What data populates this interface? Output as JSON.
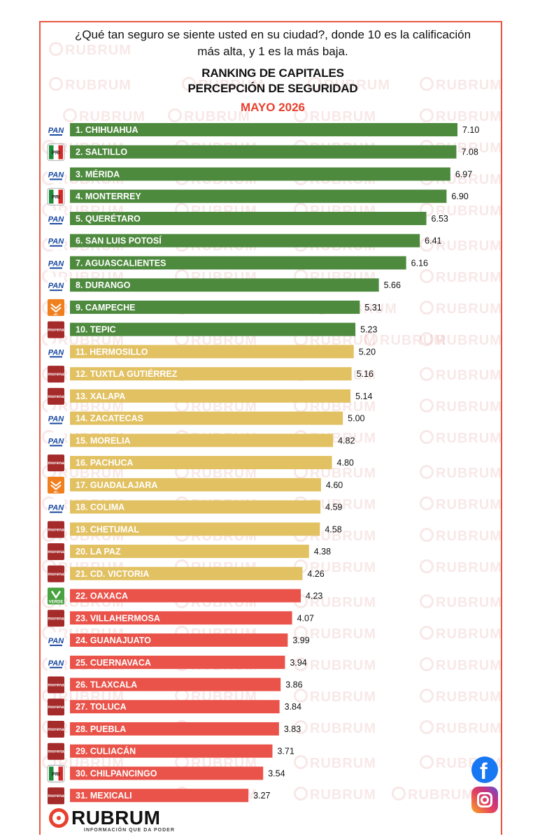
{
  "header": {
    "question": "¿Qué tan seguro se siente usted en su ciudad?, donde 10 es la calificación más alta, y  1 es la más baja."
  },
  "chart_data": {
    "type": "bar",
    "orientation": "horizontal",
    "title": "RANKING DE CAPITALES",
    "subtitle_line2": "PERCEPCIÓN DE SEGURIDAD",
    "period": "MAYO 2026",
    "xlim": [
      0,
      7.1
    ],
    "categories": [
      "1. CHIHUAHUA",
      "2. SALTILLO",
      "3. MÉRIDA",
      "4. MONTERREY",
      "5. QUERÉTARO",
      "6. SAN LUIS POTOSÍ",
      "7. AGUASCALIENTES",
      "8. DURANGO",
      "9. CAMPECHE",
      "10. TEPIC",
      "11. HERMOSILLO",
      "12. TUXTLA GUTIÉRREZ",
      "13. XALAPA",
      "14. ZACATECAS",
      "15. MORELIA",
      "16. PACHUCA",
      "17. GUADALAJARA",
      "18. COLIMA",
      "19. CHETUMAL",
      "20. LA PAZ",
      "21. CD. VICTORIA",
      "22. OAXACA",
      "23. VILLAHERMOSA",
      "24. GUANAJUATO",
      "25. CUERNAVACA",
      "26. TLAXCALA",
      "27. TOLUCA",
      "28. PUEBLA",
      "29. CULIACÁN",
      "30. CHILPANCINGO",
      "31. MEXICALI"
    ],
    "value_labels": [
      "7.10",
      "7.08",
      "6.97",
      "6.90",
      "6.53",
      "6.41",
      "6.16",
      "5.66",
      "5.31",
      "5.23",
      "5.20",
      "5.16",
      "5.14",
      "5.00",
      "4.82",
      "4.80",
      "4.60",
      "4.59",
      "4.58",
      "4.38",
      "4.26",
      "4.23",
      "4.07",
      "3.99",
      "3.94",
      "3.86",
      "3.84",
      "3.83",
      "3.71",
      "3.54",
      "3.27"
    ],
    "values": [
      7.1,
      7.08,
      6.97,
      6.9,
      6.53,
      6.41,
      6.16,
      5.66,
      5.31,
      5.23,
      5.2,
      5.16,
      5.14,
      5.0,
      4.82,
      4.8,
      4.6,
      4.59,
      4.58,
      4.38,
      4.26,
      4.23,
      4.07,
      3.99,
      3.94,
      3.86,
      3.84,
      3.83,
      3.71,
      3.54,
      3.27
    ],
    "parties": [
      "PAN",
      "PRI",
      "PAN",
      "PRI",
      "PAN",
      "PAN",
      "PAN",
      "PAN",
      "MC",
      "morena",
      "PAN",
      "morena",
      "morena",
      "PAN",
      "PAN",
      "morena",
      "MC",
      "PAN",
      "morena",
      "morena",
      "morena",
      "VERDE",
      "morena",
      "PAN",
      "PAN",
      "morena",
      "morena",
      "morena",
      "morena",
      "PRI",
      "morena"
    ],
    "bar_colors": {
      "green": "#4e8a3e",
      "yellow": "#e2c162",
      "red": "#e9534a"
    },
    "color_groups": [
      "green",
      "green",
      "green",
      "green",
      "green",
      "green",
      "green",
      "green",
      "green",
      "green",
      "yellow",
      "yellow",
      "yellow",
      "yellow",
      "yellow",
      "yellow",
      "yellow",
      "yellow",
      "yellow",
      "yellow",
      "yellow",
      "red",
      "red",
      "red",
      "red",
      "red",
      "red",
      "red",
      "red",
      "red",
      "red"
    ],
    "party_logo_text": {
      "PAN": "PAN",
      "PRI": "PRI",
      "morena": "morena",
      "MC": "MC",
      "VERDE": "VERDE"
    }
  },
  "watermark": {
    "text": "RUBRUM"
  },
  "footer": {
    "brand": "RUBRUM",
    "tagline": "INFORMACIÓN QUE DA PODER"
  },
  "social": {
    "facebook_icon": "facebook-icon",
    "instagram_icon": "instagram-icon"
  }
}
